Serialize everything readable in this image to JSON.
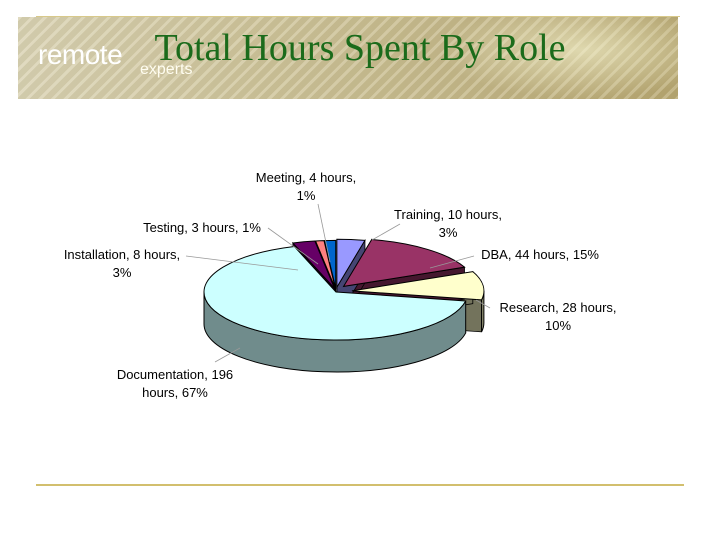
{
  "header": {
    "logo_main": "remote",
    "logo_sub": "experts",
    "title": "Total Hours Spent By Role"
  },
  "chart_data": {
    "type": "pie",
    "title": "Total Hours Spent By Role",
    "legend": "none",
    "three_d": true,
    "slices": [
      {
        "name": "Training",
        "value": 10,
        "percent": 3,
        "color": "#9999ff",
        "label": [
          "Training, 10 hours,",
          "3%"
        ]
      },
      {
        "name": "DBA",
        "value": 44,
        "percent": 15,
        "color": "#993366",
        "label": [
          "DBA, 44 hours, 15%"
        ]
      },
      {
        "name": "Research",
        "value": 28,
        "percent": 10,
        "color": "#ffffcc",
        "label": [
          "Research, 28 hours,",
          "10%"
        ]
      },
      {
        "name": "Documentation",
        "value": 196,
        "percent": 67,
        "color": "#ccffff",
        "label": [
          "Documentation, 196",
          "hours, 67%"
        ]
      },
      {
        "name": "Installation",
        "value": 8,
        "percent": 3,
        "color": "#660066",
        "label": [
          "Installation, 8 hours,",
          "3%"
        ]
      },
      {
        "name": "Testing",
        "value": 3,
        "percent": 1,
        "color": "#ff8080",
        "label": [
          "Testing, 3 hours, 1%"
        ]
      },
      {
        "name": "Meeting",
        "value": 4,
        "percent": 1,
        "color": "#0066cc",
        "label": [
          "Meeting, 4 hours,",
          "1%"
        ]
      }
    ]
  }
}
